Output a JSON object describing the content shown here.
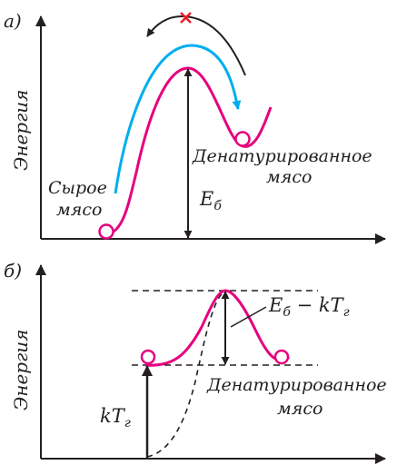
{
  "panel_a": {
    "label": "а)",
    "y_axis_label": "Энергия",
    "raw_label_line1": "Сырое",
    "raw_label_line2": "мясо",
    "denatured_label_line1": "Денатурированное",
    "denatured_label_line2": "мясо",
    "barrier_label": "E",
    "barrier_subscript": "б"
  },
  "panel_b": {
    "label": "б)",
    "y_axis_label": "Энергия",
    "thermal_label": "kT",
    "thermal_subscript": "г",
    "diff_label_main": "E",
    "diff_label_sub": "б",
    "diff_label_rest": " − kT",
    "diff_label_sub2": "г",
    "denatured_label_line1": "Денатурированное",
    "denatured_label_line2": "мясо"
  },
  "colors": {
    "energy_curve": "#e6007e",
    "blue_arrow": "#00aeef",
    "axes": "#231f20",
    "cross": "#ed1c24"
  }
}
